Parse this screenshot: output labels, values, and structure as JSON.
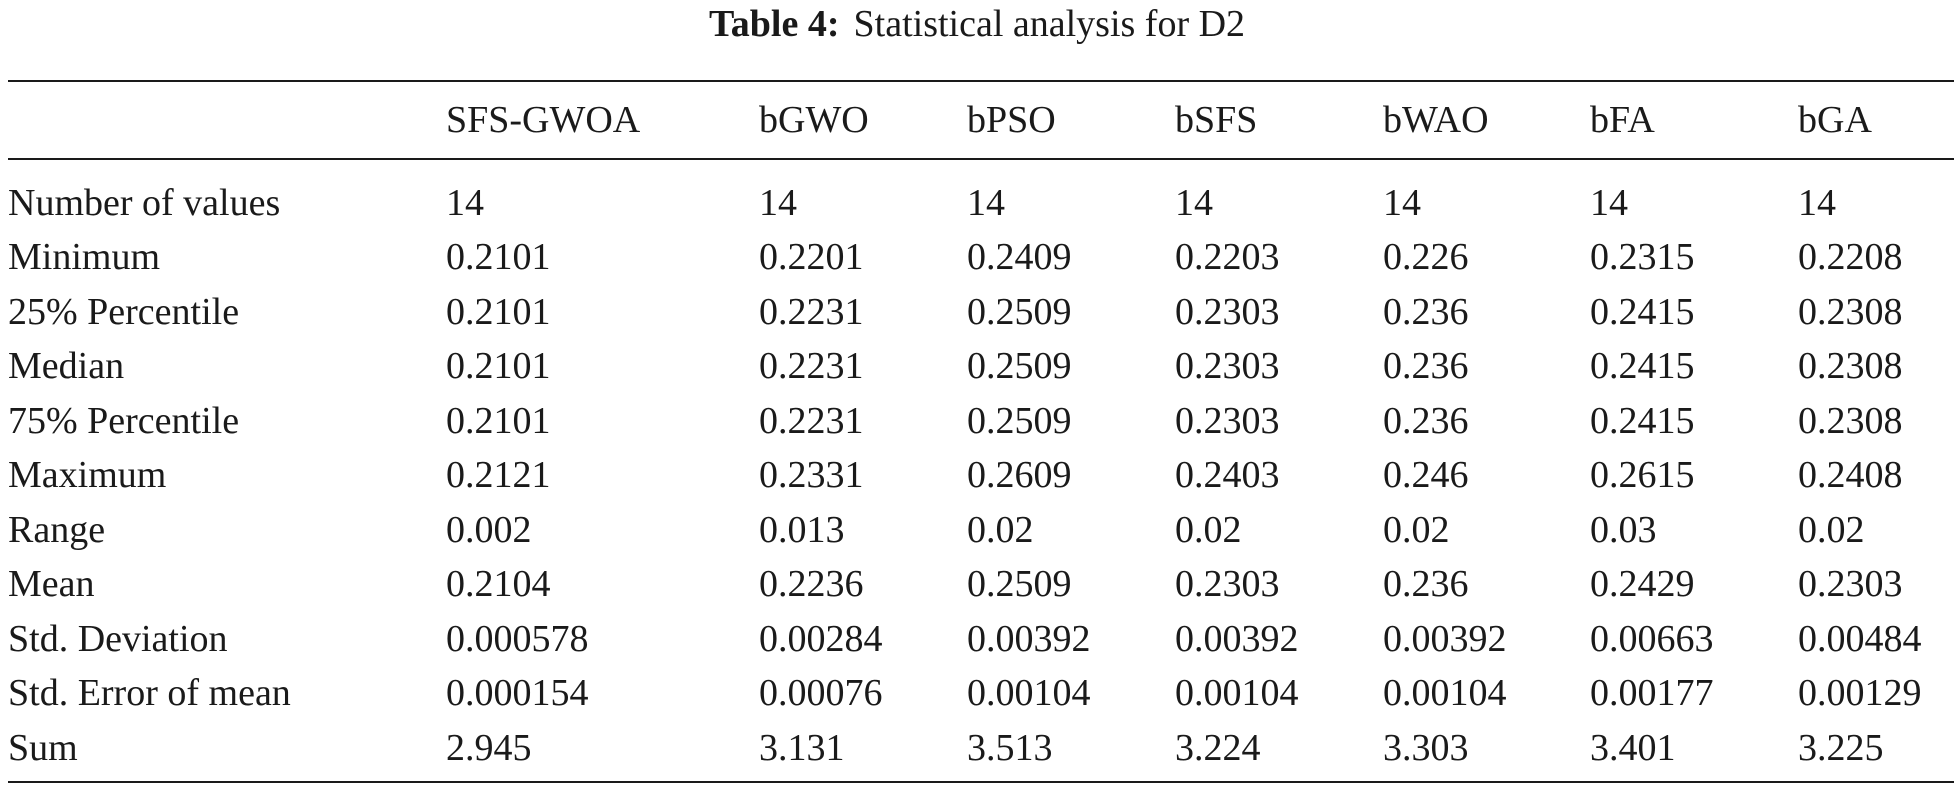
{
  "caption": {
    "label": "Table 4:",
    "text": "Statistical analysis for D2"
  },
  "table": {
    "columns": [
      "",
      "SFS-GWOA",
      "bGWO",
      "bPSO",
      "bSFS",
      "bWAO",
      "bFA",
      "bGA"
    ],
    "rows": [
      [
        "Number of values",
        "14",
        "14",
        "14",
        "14",
        "14",
        "14",
        "14"
      ],
      [
        "Minimum",
        "0.2101",
        "0.2201",
        "0.2409",
        "0.2203",
        "0.226",
        "0.2315",
        "0.2208"
      ],
      [
        "25% Percentile",
        "0.2101",
        "0.2231",
        "0.2509",
        "0.2303",
        "0.236",
        "0.2415",
        "0.2308"
      ],
      [
        "Median",
        "0.2101",
        "0.2231",
        "0.2509",
        "0.2303",
        "0.236",
        "0.2415",
        "0.2308"
      ],
      [
        "75% Percentile",
        "0.2101",
        "0.2231",
        "0.2509",
        "0.2303",
        "0.236",
        "0.2415",
        "0.2308"
      ],
      [
        "Maximum",
        "0.2121",
        "0.2331",
        "0.2609",
        "0.2403",
        "0.246",
        "0.2615",
        "0.2408"
      ],
      [
        "Range",
        "0.002",
        "0.013",
        "0.02",
        "0.02",
        "0.02",
        "0.03",
        "0.02"
      ],
      [
        "Mean",
        "0.2104",
        "0.2236",
        "0.2509",
        "0.2303",
        "0.236",
        "0.2429",
        "0.2303"
      ],
      [
        "Std. Deviation",
        "0.000578",
        "0.00284",
        "0.00392",
        "0.00392",
        "0.00392",
        "0.00663",
        "0.00484"
      ],
      [
        "Std. Error of mean",
        "0.000154",
        "0.00076",
        "0.00104",
        "0.00104",
        "0.00104",
        "0.00177",
        "0.00129"
      ],
      [
        "Sum",
        "2.945",
        "3.131",
        "3.513",
        "3.224",
        "3.303",
        "3.401",
        "3.225"
      ]
    ]
  }
}
